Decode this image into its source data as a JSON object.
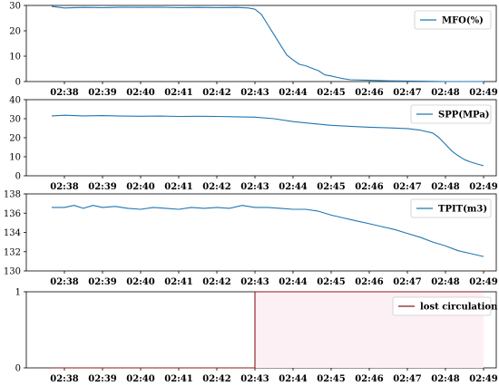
{
  "time_ticks": [
    "02:38",
    "02:39",
    "02:40",
    "02:41",
    "02:42",
    "02:43",
    "02:44",
    "02:45",
    "02:46",
    "02:47",
    "02:48",
    "02:49"
  ],
  "chart_data": [
    {
      "type": "line",
      "legend": "MFO(%)",
      "legend_placement": "top-right",
      "color": "#1f77b4",
      "ylim": [
        0,
        30
      ],
      "yticks": [
        "30",
        "20",
        "10",
        "0"
      ],
      "x_range": [
        "02:37:00",
        "02:49:20"
      ],
      "series": [
        {
          "name": "MFO(%)",
          "x": [
            "02:37:40",
            "02:38:00",
            "02:38:30",
            "02:39:00",
            "02:39:30",
            "02:40:00",
            "02:40:30",
            "02:41:00",
            "02:41:30",
            "02:42:00",
            "02:42:30",
            "02:42:50",
            "02:43:00",
            "02:43:10",
            "02:43:20",
            "02:43:30",
            "02:43:40",
            "02:43:50",
            "02:44:00",
            "02:44:10",
            "02:44:20",
            "02:44:30",
            "02:44:40",
            "02:44:50",
            "02:45:00",
            "02:45:10",
            "02:45:20",
            "02:45:30",
            "02:46:00",
            "02:46:30",
            "02:47:00",
            "02:47:30",
            "02:48:00",
            "02:48:30",
            "02:49:00"
          ],
          "y": [
            29.6,
            29.0,
            29.2,
            29.1,
            29.3,
            29.2,
            29.3,
            29.1,
            29.2,
            29.1,
            29.2,
            29.0,
            28.5,
            26.5,
            22.5,
            18.5,
            14.5,
            10.5,
            8.5,
            6.8,
            6.2,
            5.2,
            4.3,
            2.6,
            2.2,
            1.6,
            1.1,
            0.7,
            0.5,
            0.3,
            0.2,
            0.1,
            0.0,
            0.0,
            0.0
          ]
        }
      ]
    },
    {
      "type": "line",
      "legend": "SPP(MPa)",
      "legend_placement": "top-right",
      "color": "#1f77b4",
      "ylim": [
        0,
        40
      ],
      "yticks": [
        "40",
        "30",
        "20",
        "10",
        "0"
      ],
      "x_range": [
        "02:37:00",
        "02:49:20"
      ],
      "series": [
        {
          "name": "SPP(MPa)",
          "x": [
            "02:37:40",
            "02:38:00",
            "02:38:30",
            "02:39:00",
            "02:39:30",
            "02:40:00",
            "02:40:30",
            "02:41:00",
            "02:41:30",
            "02:42:00",
            "02:42:30",
            "02:43:00",
            "02:43:30",
            "02:44:00",
            "02:44:30",
            "02:45:00",
            "02:45:30",
            "02:46:00",
            "02:46:30",
            "02:47:00",
            "02:47:20",
            "02:47:40",
            "02:47:50",
            "02:48:00",
            "02:48:10",
            "02:48:20",
            "02:48:30",
            "02:48:40",
            "02:48:50",
            "02:49:00"
          ],
          "y": [
            31.5,
            31.8,
            31.5,
            31.6,
            31.4,
            31.3,
            31.4,
            31.2,
            31.3,
            31.2,
            31.0,
            30.8,
            30.0,
            28.5,
            27.5,
            26.5,
            26.0,
            25.5,
            25.2,
            24.8,
            24.0,
            22.5,
            20.0,
            16.5,
            13.0,
            10.5,
            8.5,
            7.2,
            6.2,
            5.3
          ]
        }
      ]
    },
    {
      "type": "line",
      "legend": "TPIT(m3)",
      "legend_placement": "top-right",
      "color": "#1f77b4",
      "ylim": [
        130,
        138
      ],
      "yticks": [
        "138",
        "136",
        "134",
        "132",
        "130"
      ],
      "x_range": [
        "02:37:00",
        "02:49:20"
      ],
      "series": [
        {
          "name": "TPIT(m3)",
          "x": [
            "02:37:40",
            "02:38:00",
            "02:38:15",
            "02:38:30",
            "02:38:45",
            "02:39:00",
            "02:39:20",
            "02:39:40",
            "02:40:00",
            "02:40:20",
            "02:40:40",
            "02:41:00",
            "02:41:20",
            "02:41:40",
            "02:42:00",
            "02:42:20",
            "02:42:40",
            "02:43:00",
            "02:43:20",
            "02:43:40",
            "02:44:00",
            "02:44:20",
            "02:44:40",
            "02:45:00",
            "02:45:20",
            "02:45:40",
            "02:46:00",
            "02:46:20",
            "02:46:40",
            "02:47:00",
            "02:47:20",
            "02:47:40",
            "02:48:00",
            "02:48:20",
            "02:48:40",
            "02:49:00"
          ],
          "y": [
            136.6,
            136.6,
            136.8,
            136.5,
            136.8,
            136.6,
            136.7,
            136.5,
            136.4,
            136.6,
            136.5,
            136.4,
            136.6,
            136.5,
            136.6,
            136.5,
            136.8,
            136.6,
            136.6,
            136.5,
            136.4,
            136.4,
            136.2,
            135.8,
            135.5,
            135.2,
            134.9,
            134.6,
            134.3,
            133.9,
            133.5,
            133.0,
            132.6,
            132.1,
            131.8,
            131.5
          ]
        }
      ]
    },
    {
      "type": "line",
      "legend": "lost circulation",
      "legend_placement": "top-right",
      "color": "#8b1a1a",
      "ylim": [
        0,
        1
      ],
      "yticks": [
        "1",
        "0"
      ],
      "x_range": [
        "02:37:00",
        "02:49:20"
      ],
      "series": [
        {
          "name": "lost circulation",
          "x": [
            "02:37:40",
            "02:43:00",
            "02:43:00",
            "02:49:00"
          ],
          "y": [
            0,
            0,
            1,
            1
          ]
        }
      ]
    }
  ]
}
